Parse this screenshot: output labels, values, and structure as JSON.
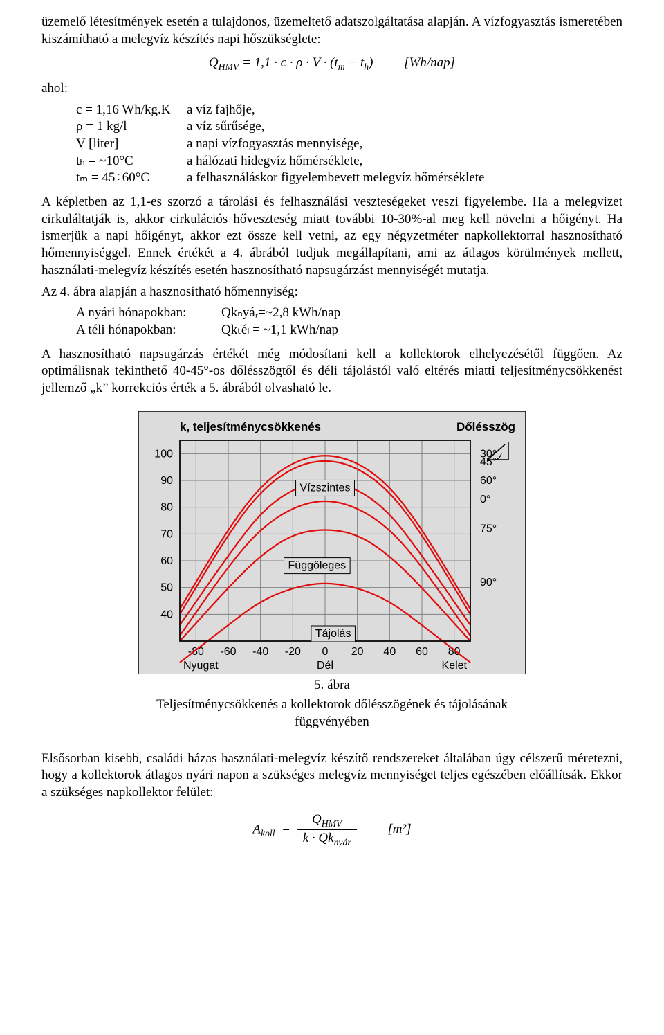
{
  "para1": "üzemelő létesítmények esetén a tulajdonos, üzemeltető adatszolgáltatása alapján. A vízfogyasztás ismeretében kiszámítható a melegvíz készítés napi hőszükséglete:",
  "eq1": {
    "lhs_Q": "Q",
    "lhs_sub": "HMV",
    "eq": " = 1,1 · c · ρ · V · (t",
    "sub_m": "m",
    "minus_t": " − t",
    "sub_h": "h",
    "close": ")",
    "unit": "[Wh/nap]"
  },
  "ahol": "ahol:",
  "defs": [
    {
      "sym": "c = 1,16 Wh/kg.K",
      "txt": "a víz fajhője,"
    },
    {
      "sym": "ρ = 1 kg/l",
      "txt": "a víz sűrűsége,"
    },
    {
      "sym": "V  [liter]",
      "txt": "a napi vízfogyasztás mennyisége,"
    },
    {
      "sym": "tₕ = ~10°C",
      "txt": "a hálózati hidegvíz hőmérséklete,"
    },
    {
      "sym": "tₘ = 45÷60°C",
      "txt": "a felhasználáskor figyelembevett melegvíz hőmérséklete"
    }
  ],
  "para2": "A képletben az 1,1-es szorzó a tárolási és felhasználási veszteségeket veszi figyelembe. Ha a melegvizet cirkuláltatják is, akkor cirkulációs hőveszteség miatt további 10-30%-al meg kell növelni a hőigényt. Ha ismerjük a napi hőigényt, akkor ezt össze kell vetni, az egy négyzetméter napkollektorral hasznosítható hőmennyiséggel. Ennek értékét a 4. ábrából tudjuk megállapítani, ami az átlagos körülmények mellett, használati-melegvíz készítés esetén hasznosítható napsugárzást mennyiségét mutatja.",
  "para3": "Az 4. ábra alapján a hasznosítható hőmennyiség:",
  "list": [
    {
      "label": "A nyári hónapokban:",
      "val": "Qkₙyáᵣ=~2,8 kWh/nap"
    },
    {
      "label": "A téli hónapokban:",
      "val": "Qkₜéₗ = ~1,1 kWh/nap"
    }
  ],
  "para4": "A hasznosítható napsugárzás értékét még módosítani kell a kollektorok elhelyezésétől függően. Az optimálisnak tekinthető 40-45°-os dőlésszögtől és déli tájolástól való eltérés miatti teljesítménycsökkenést jellemző „k” korrekciós érték a 5. ábrából olvasható le.",
  "chart": {
    "bg": "#dcdcdc",
    "plot_bg": "#dcdcdc",
    "grid_color": "#808080",
    "axis_color": "#000000",
    "line_color": "#e20c0c",
    "line_width": 2.2,
    "title": "k, teljesítménycsökkenés",
    "right_title": "Dőlésszög",
    "y_ticks": [
      "40",
      "50",
      "60",
      "70",
      "80",
      "90",
      "100"
    ],
    "x_ticks": [
      "-80",
      "-60",
      "-40",
      "-20",
      "0",
      "20",
      "40",
      "60",
      "80"
    ],
    "x_label_mid": "Tájolás",
    "x_label_left": "Nyugat",
    "x_label_center": "Dél",
    "x_label_right": "Kelet",
    "angle_labels": [
      "0°",
      "30°",
      "45°",
      "60°",
      "75°",
      "90°"
    ],
    "inside_labels": {
      "top": "Vízszintes",
      "bottom": "Függőleges"
    },
    "curves": [
      {
        "label": "0°",
        "pts": [
          [
            -90,
            32
          ],
          [
            -60,
            58
          ],
          [
            -40,
            72
          ],
          [
            -20,
            80
          ],
          [
            0,
            83
          ],
          [
            20,
            80
          ],
          [
            40,
            72
          ],
          [
            60,
            58
          ],
          [
            90,
            32
          ]
        ]
      },
      {
        "label": "30°",
        "pts": [
          [
            -90,
            42
          ],
          [
            -60,
            72
          ],
          [
            -40,
            88
          ],
          [
            -20,
            97
          ],
          [
            0,
            100
          ],
          [
            20,
            97
          ],
          [
            40,
            88
          ],
          [
            60,
            72
          ],
          [
            90,
            42
          ]
        ]
      },
      {
        "label": "45°",
        "pts": [
          [
            -90,
            40
          ],
          [
            -60,
            70
          ],
          [
            -40,
            86
          ],
          [
            -20,
            95
          ],
          [
            0,
            98
          ],
          [
            20,
            95
          ],
          [
            40,
            86
          ],
          [
            60,
            70
          ],
          [
            90,
            40
          ]
        ]
      },
      {
        "label": "60°",
        "pts": [
          [
            -90,
            36
          ],
          [
            -60,
            62
          ],
          [
            -40,
            78
          ],
          [
            -20,
            87
          ],
          [
            0,
            90
          ],
          [
            20,
            87
          ],
          [
            40,
            78
          ],
          [
            60,
            62
          ],
          [
            90,
            36
          ]
        ]
      },
      {
        "label": "75°",
        "pts": [
          [
            -90,
            30
          ],
          [
            -60,
            50
          ],
          [
            -40,
            62
          ],
          [
            -20,
            70
          ],
          [
            0,
            72
          ],
          [
            20,
            70
          ],
          [
            40,
            62
          ],
          [
            60,
            50
          ],
          [
            90,
            30
          ]
        ]
      },
      {
        "label": "90°",
        "pts": [
          [
            -90,
            22
          ],
          [
            -60,
            36
          ],
          [
            -40,
            45
          ],
          [
            -20,
            50
          ],
          [
            0,
            52
          ],
          [
            20,
            50
          ],
          [
            40,
            45
          ],
          [
            60,
            36
          ],
          [
            90,
            22
          ]
        ]
      }
    ]
  },
  "fig_num": "5. ábra",
  "fig_caption": "Teljesítménycsökkenés a kollektorok dőlésszögének és tájolásának függvényében",
  "para5": "Elsősorban kisebb, családi házas használati-melegvíz készítő rendszereket általában úgy célszerű méretezni, hogy a kollektorok átlagos nyári napon a szükséges melegvíz mennyiséget teljes egészében előállítsák. Ekkor a szükséges napkollektor felület:",
  "eq2": {
    "lhs_A": "A",
    "lhs_sub": "koll",
    "eq": "=",
    "num_Q": "Q",
    "num_sub": "HMV",
    "den_k": "k · Qk",
    "den_sub": "nyár",
    "unit": "[m²]"
  }
}
